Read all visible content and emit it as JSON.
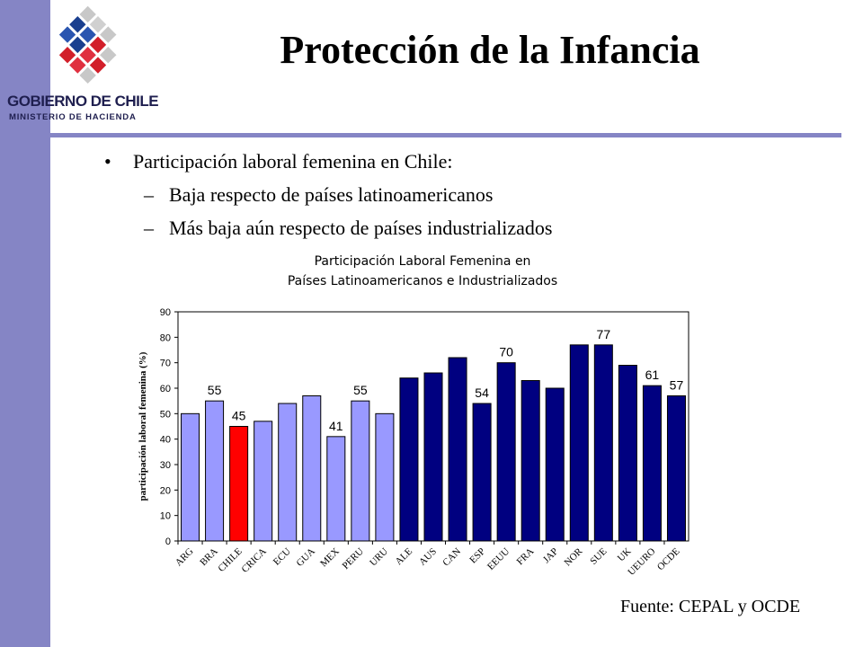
{
  "logo": {
    "line1": "GOBIERNO DE CHILE",
    "line2": "MINISTERIO DE HACIENDA"
  },
  "title": "Protección de la Infancia",
  "bullets": {
    "main": "Participación laboral femenina en Chile:",
    "bullet_symbol": "•",
    "dash_symbol": "–",
    "sub": [
      "Baja respecto de países latinoamericanos",
      "Más baja aún respecto de países industrializados"
    ]
  },
  "chart_data": {
    "type": "bar",
    "title": "Participación Laboral Femenina en",
    "subtitle": "Países Latinoamericanos e Industrializados",
    "ylabel": "participación laboral femenina (%)",
    "xlabel": "",
    "ylim": [
      0,
      90
    ],
    "yticks": [
      0,
      10,
      20,
      30,
      40,
      50,
      60,
      70,
      80,
      90
    ],
    "categories": [
      "ARG",
      "BRA",
      "CHILE",
      "CRICA",
      "ECU",
      "GUA",
      "MEX",
      "PERU",
      "URU",
      "ALE",
      "AUS",
      "CAN",
      "ESP",
      "EEUU",
      "FRA",
      "JAP",
      "NOR",
      "SUE",
      "UK",
      "UEURO",
      "OCDE"
    ],
    "values": [
      50,
      55,
      45,
      47,
      54,
      57,
      41,
      55,
      50,
      64,
      66,
      72,
      54,
      70,
      63,
      60,
      77,
      77,
      69,
      61,
      57
    ],
    "groups": [
      "latam",
      "latam",
      "chile",
      "latam",
      "latam",
      "latam",
      "latam",
      "latam",
      "latam",
      "ind",
      "ind",
      "ind",
      "ind",
      "ind",
      "ind",
      "ind",
      "ind",
      "ind",
      "ind",
      "ind",
      "ind"
    ],
    "data_labels": [
      {
        "index": 1,
        "text": "55"
      },
      {
        "index": 2,
        "text": "45"
      },
      {
        "index": 6,
        "text": "41"
      },
      {
        "index": 7,
        "text": "55"
      },
      {
        "index": 12,
        "text": "54"
      },
      {
        "index": 13,
        "text": "70"
      },
      {
        "index": 17,
        "text": "77"
      },
      {
        "index": 19,
        "text": "61"
      },
      {
        "index": 20,
        "text": "57"
      }
    ],
    "colors": {
      "latam": "#9999ff",
      "chile": "#ff0000",
      "ind": "#000080"
    },
    "grid": false,
    "legend": "none"
  },
  "source": "Fuente: CEPAL y OCDE"
}
